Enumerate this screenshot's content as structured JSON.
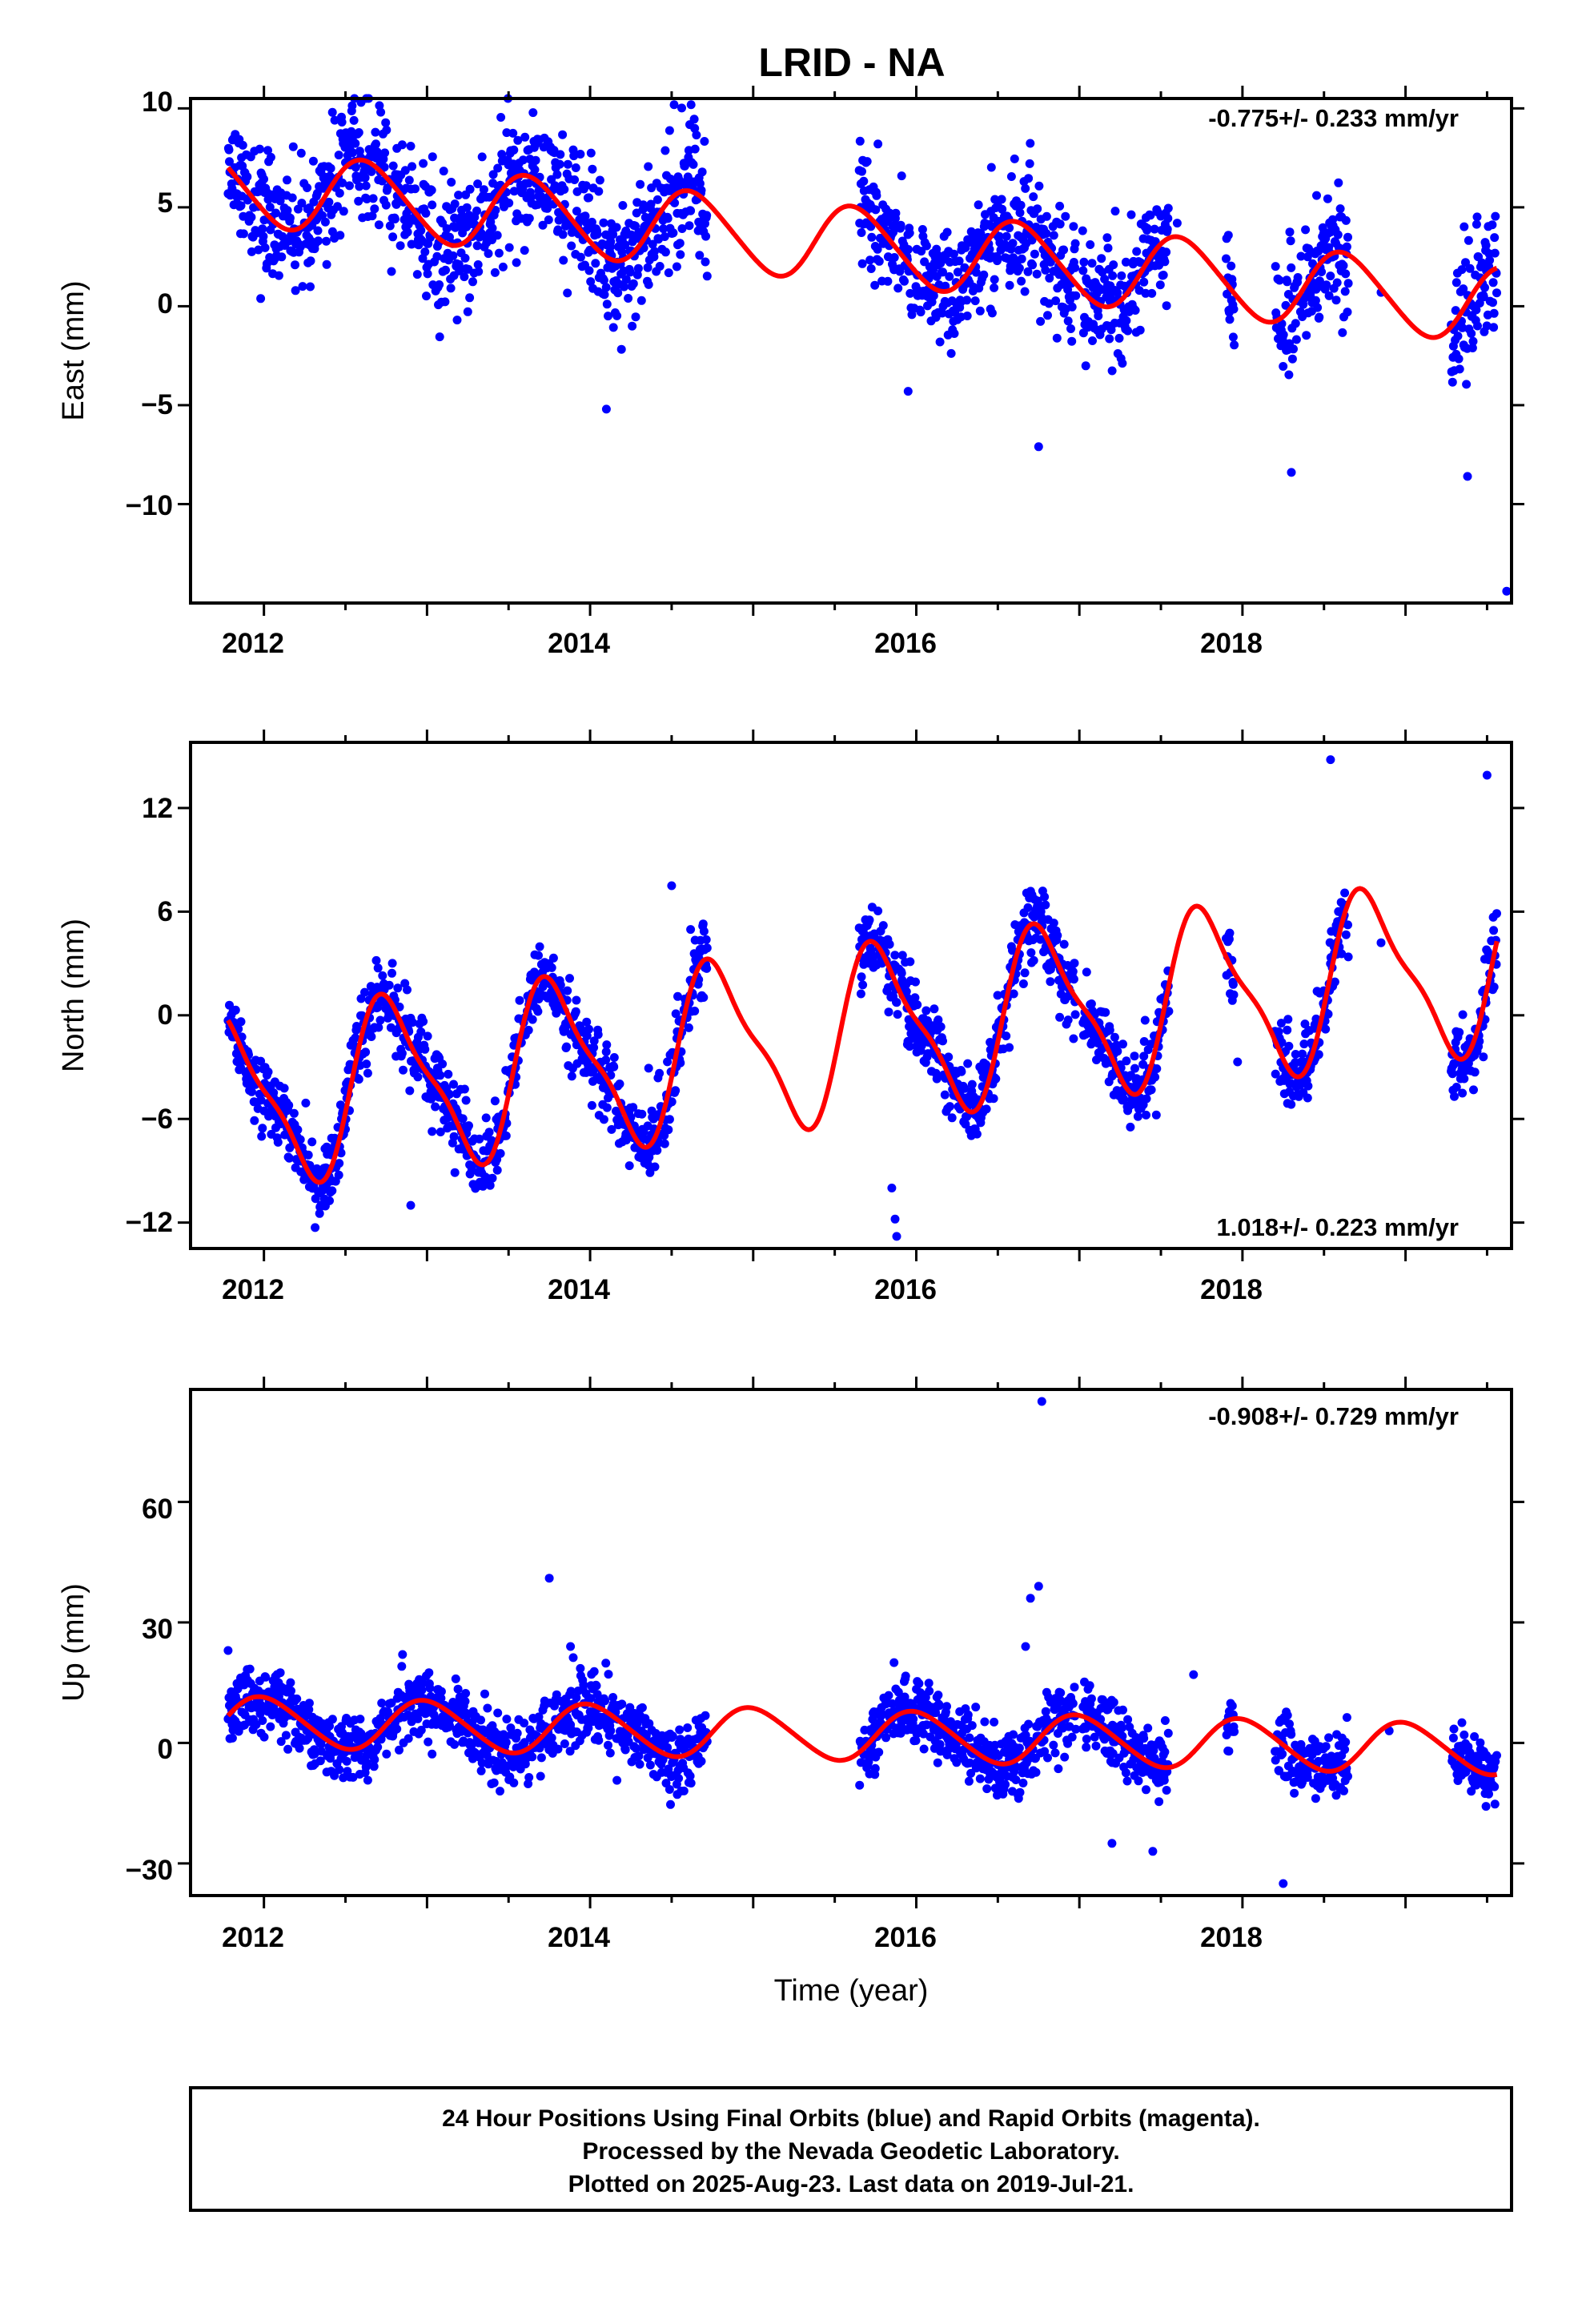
{
  "page_title": "LRID - NA",
  "colors": {
    "final_orbits": "#0000ff",
    "model": "#ff0000",
    "axes": "#000000"
  },
  "footer": {
    "line1": "24 Hour Positions Using Final Orbits (blue) and Rapid Orbits (magenta).",
    "line2": "Processed by the Nevada Geodetic Laboratory.",
    "line3": "Plotted on 2025-Aug-23. Last data on 2019-Jul-21."
  },
  "chart_data": [
    {
      "type": "scatter",
      "ylabel": "East (mm)",
      "xlabel": "",
      "rate_label": "-0.775+/- 0.233 mm/yr",
      "rate_position": "top-right",
      "xlim": [
        2011.55,
        2019.65
      ],
      "ylim": [
        -15,
        10.5
      ],
      "x_ticks": [
        2012,
        2014,
        2016,
        2018
      ],
      "y_ticks": [
        10,
        5,
        0,
        -5,
        -10
      ],
      "grid": false,
      "model": {
        "intercept": 3.2,
        "slope": -0.775,
        "annual_amp": 1.9,
        "annual_phase": 0.38,
        "semiannual_amp": 0.2
      },
      "data_segments": [
        [
          2011.78,
          2014.72
        ],
        [
          2015.65,
          2016.98
        ],
        [
          2017.02,
          2017.55
        ],
        [
          2017.9,
          2017.95
        ],
        [
          2018.2,
          2018.65
        ],
        [
          2019.28,
          2019.56
        ]
      ],
      "scatter_sd": 1.55,
      "outliers": [
        [
          2012.42,
          9.8
        ],
        [
          2013.72,
          8.5
        ],
        [
          2013.9,
          7.6
        ],
        [
          2014.1,
          -5.2
        ],
        [
          2015.95,
          -4.3
        ],
        [
          2016.75,
          -7.1
        ],
        [
          2017.6,
          4.2
        ],
        [
          2018.3,
          -8.4
        ],
        [
          2018.85,
          0.7
        ],
        [
          2019.38,
          -8.6
        ],
        [
          2019.62,
          -14.4
        ]
      ]
    },
    {
      "type": "scatter",
      "ylabel": "North (mm)",
      "xlabel": "",
      "rate_label": "1.018+/- 0.223 mm/yr",
      "rate_position": "bottom-right",
      "xlim": [
        2011.55,
        2019.65
      ],
      "ylim": [
        -13.5,
        15.8
      ],
      "x_ticks": [
        2012,
        2014,
        2016,
        2018
      ],
      "y_ticks": [
        12,
        6,
        0,
        -6,
        -12
      ],
      "grid": false,
      "model": {
        "intercept": -1.2,
        "slope": 1.018,
        "annual_amp": 4.7,
        "annual_phase": 0.53,
        "semiannual_amp": 1.3
      },
      "data_segments": [
        [
          2011.78,
          2014.72
        ],
        [
          2015.65,
          2016.98
        ],
        [
          2017.02,
          2017.55
        ],
        [
          2017.9,
          2017.95
        ],
        [
          2018.2,
          2018.65
        ],
        [
          2019.28,
          2019.56
        ]
      ],
      "scatter_sd": 1.1,
      "outliers": [
        [
          2015.85,
          -10.0
        ],
        [
          2015.87,
          -11.8
        ],
        [
          2015.88,
          -12.8
        ],
        [
          2012.9,
          -11.0
        ],
        [
          2014.5,
          7.5
        ],
        [
          2018.54,
          14.8
        ],
        [
          2019.5,
          13.9
        ],
        [
          2018.85,
          4.2
        ],
        [
          2017.97,
          -2.7
        ]
      ]
    },
    {
      "type": "scatter",
      "ylabel": "Up (mm)",
      "xlabel": "Time (year)",
      "rate_label": "-0.908+/- 0.729 mm/yr",
      "rate_position": "top-right",
      "xlim": [
        2011.55,
        2019.65
      ],
      "ylim": [
        -38,
        88
      ],
      "x_ticks": [
        2012,
        2014,
        2016,
        2018
      ],
      "y_ticks": [
        60,
        30,
        0,
        -30
      ],
      "grid": false,
      "model": {
        "intercept": 2.0,
        "slope": -0.908,
        "annual_amp": 6.2,
        "annual_phase": 0.75,
        "semiannual_amp": 0.6
      },
      "data_segments": [
        [
          2011.78,
          2014.72
        ],
        [
          2015.65,
          2016.98
        ],
        [
          2017.02,
          2017.55
        ],
        [
          2017.9,
          2017.95
        ],
        [
          2018.2,
          2018.65
        ],
        [
          2019.28,
          2019.56
        ]
      ],
      "scatter_sd": 4.2,
      "outliers": [
        [
          2016.77,
          85.0
        ],
        [
          2016.75,
          39.0
        ],
        [
          2016.7,
          36.0
        ],
        [
          2013.75,
          41.0
        ],
        [
          2018.25,
          -35.0
        ],
        [
          2011.78,
          23.0
        ],
        [
          2013.88,
          24.0
        ],
        [
          2012.85,
          22.0
        ],
        [
          2016.67,
          24.0
        ],
        [
          2017.2,
          -25.0
        ],
        [
          2017.45,
          -27.0
        ],
        [
          2017.7,
          17.0
        ],
        [
          2018.9,
          3.0
        ]
      ]
    }
  ]
}
